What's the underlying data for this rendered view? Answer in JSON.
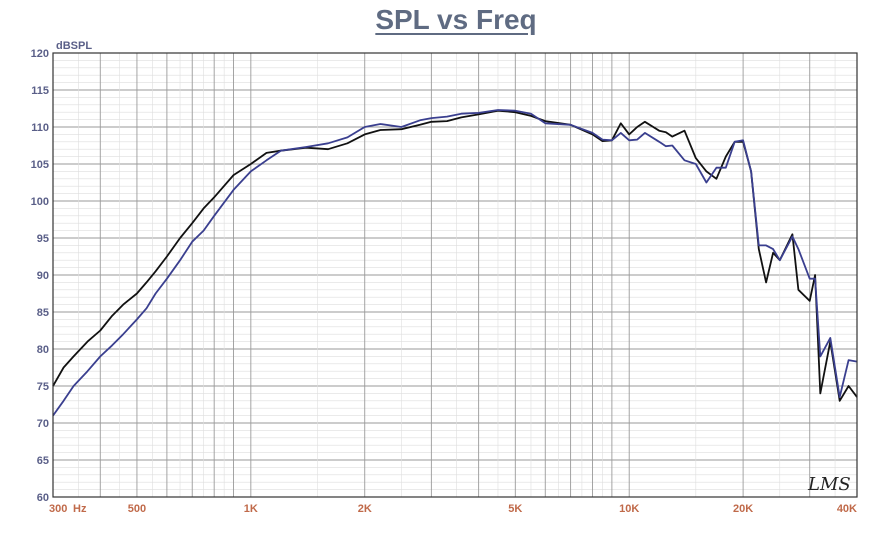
{
  "chart_data": {
    "type": "line",
    "title": "SPL vs Freq",
    "ylabel": "dBSPL",
    "x_scale": "log",
    "xlim": [
      300,
      40000
    ],
    "ylim": [
      60,
      120
    ],
    "grid": true,
    "y_ticks": [
      120,
      115,
      110,
      105,
      100,
      95,
      90,
      85,
      80,
      75,
      70,
      65,
      60
    ],
    "x_ticks": [
      {
        "value": 300,
        "label": "300"
      },
      {
        "value": 500,
        "label": "500"
      },
      {
        "value": 1000,
        "label": "1K"
      },
      {
        "value": 2000,
        "label": "2K"
      },
      {
        "value": 5000,
        "label": "5K"
      },
      {
        "value": 10000,
        "label": "10K"
      },
      {
        "value": 20000,
        "label": "20K"
      },
      {
        "value": 40000,
        "label": "40K"
      }
    ],
    "x_unit_label": "Hz",
    "logo_text": "LMS",
    "series": [
      {
        "color": "#111111",
        "x": [
          300,
          320,
          340,
          370,
          400,
          430,
          460,
          500,
          530,
          560,
          600,
          650,
          700,
          750,
          800,
          900,
          1000,
          1100,
          1200,
          1400,
          1600,
          1800,
          2000,
          2200,
          2500,
          2800,
          3000,
          3300,
          3600,
          4000,
          4500,
          5000,
          5500,
          6000,
          7000,
          8000,
          8500,
          9000,
          9500,
          10000,
          10500,
          11000,
          12000,
          12500,
          13000,
          14000,
          15000,
          16000,
          17000,
          18000,
          19000,
          20000,
          21000,
          22000,
          23000,
          24000,
          25000,
          27000,
          28000,
          30000,
          31000,
          32000,
          34000,
          36000,
          38000,
          40000
        ],
        "y": [
          75,
          77.5,
          79,
          81,
          82.5,
          84.5,
          86,
          87.5,
          89,
          90.5,
          92.5,
          95,
          97,
          99,
          100.5,
          103.5,
          105,
          106.5,
          106.8,
          107.2,
          107,
          107.8,
          109,
          109.6,
          109.7,
          110.3,
          110.7,
          110.8,
          111.3,
          111.7,
          112.2,
          112,
          111.5,
          110.8,
          110.3,
          109,
          108.1,
          108.2,
          110.5,
          109,
          110,
          110.7,
          109.5,
          109.3,
          108.7,
          109.5,
          105.8,
          104,
          103,
          106,
          108,
          108,
          104,
          93.5,
          89,
          93,
          92,
          95.5,
          88,
          86.5,
          90,
          74,
          81,
          73,
          75,
          73.5
        ]
      },
      {
        "color": "#3a3f8f",
        "x": [
          300,
          320,
          340,
          370,
          400,
          430,
          460,
          500,
          530,
          560,
          600,
          650,
          700,
          750,
          800,
          900,
          1000,
          1100,
          1200,
          1400,
          1600,
          1800,
          2000,
          2200,
          2500,
          2800,
          3000,
          3300,
          3600,
          4000,
          4500,
          5000,
          5500,
          6000,
          7000,
          8000,
          8500,
          9000,
          9500,
          10000,
          10500,
          11000,
          12000,
          12500,
          13000,
          14000,
          15000,
          16000,
          17000,
          18000,
          19000,
          20000,
          21000,
          22000,
          23000,
          24000,
          25000,
          27000,
          28000,
          30000,
          31000,
          32000,
          34000,
          36000,
          38000,
          40000
        ],
        "y": [
          71,
          73,
          75,
          77,
          79,
          80.5,
          82,
          84,
          85.5,
          87.5,
          89.5,
          92,
          94.5,
          96,
          98,
          101.5,
          104,
          105.5,
          106.8,
          107.3,
          107.8,
          108.6,
          110,
          110.4,
          110,
          110.9,
          111.2,
          111.4,
          111.8,
          111.9,
          112.3,
          112.2,
          111.8,
          110.5,
          110.3,
          109.2,
          108.3,
          108.2,
          109.2,
          108.2,
          108.3,
          109.2,
          108,
          107.4,
          107.5,
          105.5,
          105,
          102.5,
          104.5,
          104.5,
          108,
          108.2,
          104,
          94,
          94,
          93.5,
          92,
          95.2,
          93.5,
          89.5,
          89.5,
          79,
          81.5,
          73.5,
          78.5,
          78.3
        ]
      }
    ]
  }
}
